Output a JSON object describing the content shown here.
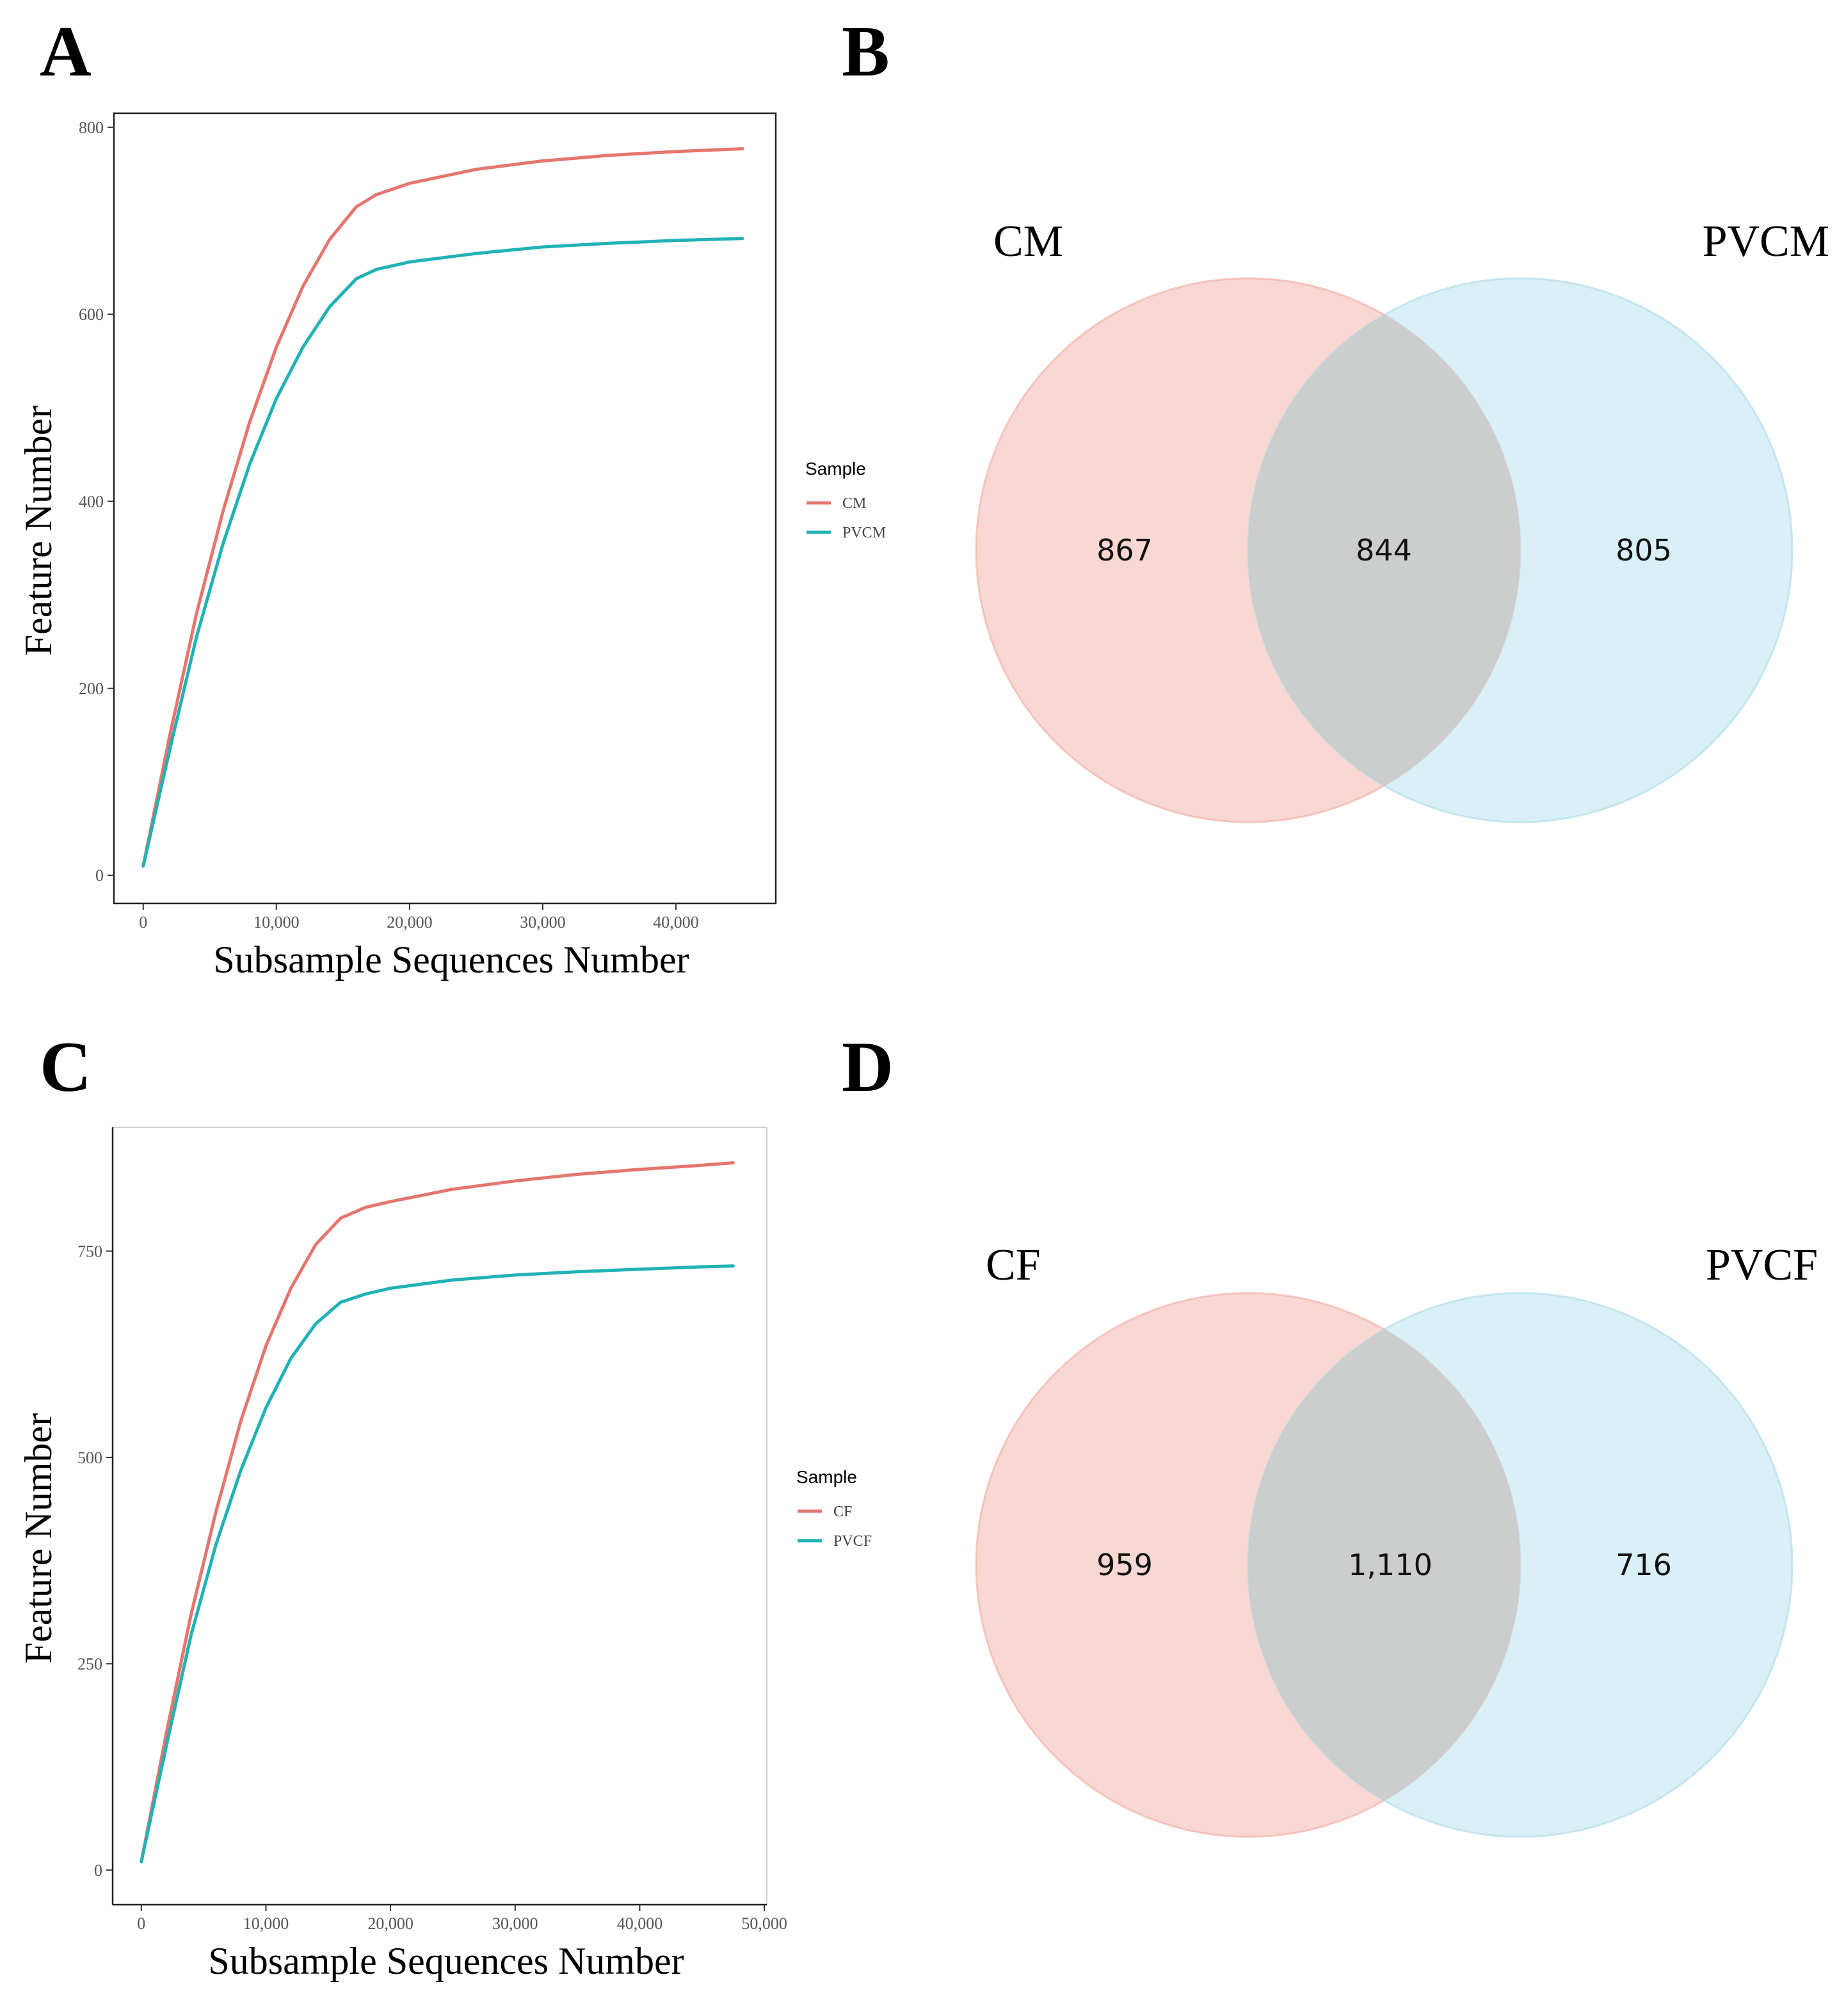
{
  "panels": {
    "a": "A",
    "b": "B",
    "c": "C",
    "d": "D"
  },
  "colors": {
    "red": "#e5756d",
    "teal": "#20b2b5",
    "venn_left": "#f4b6ad",
    "venn_right": "#b9e3ee"
  },
  "chart_data": [
    {
      "id": "A",
      "type": "line",
      "xlabel": "Subsample Sequences Number",
      "ylabel": "Feature Number",
      "xlim": [
        -2200,
        47500
      ],
      "ylim": [
        -30,
        815
      ],
      "xticks": [
        0,
        10000,
        20000,
        30000,
        40000
      ],
      "xtick_labels": [
        "0",
        "10,000",
        "20,000",
        "30,000",
        "40,000"
      ],
      "yticks": [
        0,
        200,
        400,
        600,
        800
      ],
      "ytick_labels": [
        "0",
        "200",
        "400",
        "600",
        "800"
      ],
      "legend": {
        "title": "Sample",
        "position": "right"
      },
      "series": [
        {
          "name": "CM",
          "color": "#e5756d",
          "x": [
            0,
            2000,
            4000,
            6000,
            8000,
            10000,
            12000,
            14000,
            16000,
            17500,
            20000,
            25000,
            30000,
            35000,
            40000,
            45000
          ],
          "y": [
            10,
            150,
            280,
            390,
            485,
            565,
            630,
            680,
            715,
            728,
            740,
            755,
            764,
            770,
            774,
            777
          ]
        },
        {
          "name": "PVCM",
          "color": "#20b2b5",
          "x": [
            0,
            2000,
            4000,
            6000,
            8000,
            10000,
            12000,
            14000,
            16000,
            17500,
            20000,
            25000,
            30000,
            35000,
            40000,
            45000
          ],
          "y": [
            10,
            135,
            255,
            355,
            440,
            510,
            565,
            608,
            638,
            648,
            656,
            665,
            672,
            676,
            679,
            681
          ]
        }
      ]
    },
    {
      "id": "C",
      "type": "line",
      "xlabel": "Subsample Sequences Number",
      "ylabel": "Feature Number",
      "xlim": [
        -2300,
        50200
      ],
      "ylim": [
        -42,
        900
      ],
      "xticks": [
        0,
        10000,
        20000,
        30000,
        40000,
        50000
      ],
      "xtick_labels": [
        "0",
        "10,000",
        "20,000",
        "30,000",
        "40,000",
        "50,000"
      ],
      "yticks": [
        0,
        250,
        500,
        750
      ],
      "ytick_labels": [
        "0",
        "250",
        "500",
        "750"
      ],
      "legend": {
        "title": "Sample",
        "position": "right"
      },
      "series": [
        {
          "name": "CF",
          "color": "#e5756d",
          "x": [
            0,
            2000,
            4000,
            6000,
            8000,
            10000,
            12000,
            14000,
            16000,
            18000,
            20000,
            25000,
            30000,
            35000,
            40000,
            45000,
            47500
          ],
          "y": [
            10,
            165,
            310,
            435,
            545,
            635,
            705,
            758,
            790,
            803,
            810,
            825,
            835,
            843,
            849,
            854,
            857
          ]
        },
        {
          "name": "PVCF",
          "color": "#20b2b5",
          "x": [
            0,
            2000,
            4000,
            6000,
            8000,
            10000,
            12000,
            14000,
            16000,
            18000,
            20000,
            25000,
            30000,
            35000,
            40000,
            45000,
            47500
          ],
          "y": [
            10,
            150,
            285,
            395,
            485,
            560,
            620,
            662,
            688,
            698,
            705,
            715,
            721,
            725,
            728,
            731,
            732
          ]
        }
      ]
    },
    {
      "id": "B",
      "type": "venn",
      "sets": [
        "CM",
        "PVCM"
      ],
      "only_left": "867",
      "overlap": "844",
      "only_right": "805"
    },
    {
      "id": "D",
      "type": "venn",
      "sets": [
        "CF",
        "PVCF"
      ],
      "only_left": "959",
      "overlap": "1,110",
      "only_right": "716"
    }
  ]
}
